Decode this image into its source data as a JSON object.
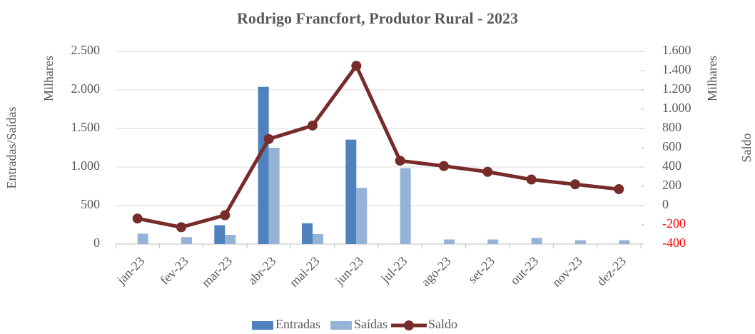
{
  "chart_data": {
    "type": "bar_line",
    "title": "Rodrigo Francfort, Produtor Rural - 2023",
    "y_label": "Entradas/Saídas",
    "y_unit": "Milhares",
    "y2_label": "Saldo",
    "y2_unit": "Milhares",
    "categories": [
      "jan-23",
      "fev-23",
      "mar-23",
      "abr-23",
      "mai-23",
      "jun-23",
      "jul-23",
      "ago-23",
      "set-23",
      "out-23",
      "nov-23",
      "dez-23"
    ],
    "series": [
      {
        "name": "Entradas",
        "type": "bar",
        "color": "#4f81bd",
        "values": [
          0,
          0,
          245,
          2040,
          270,
          1355,
          0,
          0,
          0,
          0,
          0,
          0
        ]
      },
      {
        "name": "Saídas",
        "type": "bar",
        "color": "#95b3d7",
        "values": [
          135,
          90,
          120,
          1250,
          130,
          730,
          985,
          60,
          60,
          80,
          50,
          50
        ]
      },
      {
        "name": "Saldo",
        "type": "line",
        "axis": "y2",
        "color": "#772c2a",
        "values": [
          -135,
          -225,
          -100,
          690,
          830,
          1450,
          465,
          410,
          350,
          270,
          220,
          170
        ]
      }
    ],
    "ylim": [
      0,
      2500
    ],
    "yticks": [
      0,
      500,
      {
        "value": 1000,
        "label": "1.000"
      },
      {
        "value": 1500,
        "label": "1.500"
      },
      {
        "value": 2000,
        "label": "2.000"
      },
      {
        "value": 2500,
        "label": "2.500"
      }
    ],
    "y2lim": [
      -400,
      1600
    ],
    "y2ticks": [
      -400,
      -200,
      0,
      200,
      400,
      600,
      800,
      {
        "value": 1000,
        "label": "1.000"
      },
      {
        "value": 1200,
        "label": "1.200"
      },
      {
        "value": 1400,
        "label": "1.400"
      },
      {
        "value": 1600,
        "label": "1.600"
      }
    ],
    "negative_tick_color": "#ff0000",
    "grid": true,
    "legend": "bottom"
  }
}
